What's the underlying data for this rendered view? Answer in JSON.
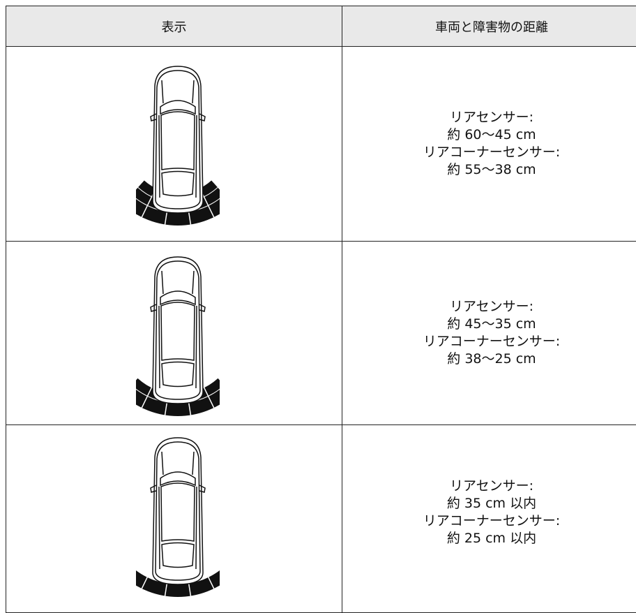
{
  "table": {
    "header": [
      "表示",
      "車両と障害物の距離"
    ],
    "rows": [
      [
        "リアセンサー:",
        "約 60〜45 cm",
        "リアコーナーセンサー:",
        "約 55〜38 cm"
      ],
      [
        "リアセンサー:",
        "約 45〜35 cm",
        "リアコーナーセンサー:",
        "約 38〜25 cm"
      ],
      [
        "リアセンサー:",
        "約 35 cm 以内",
        "リアコーナーセンサー:",
        "約 25 cm 以内"
      ]
    ]
  }
}
